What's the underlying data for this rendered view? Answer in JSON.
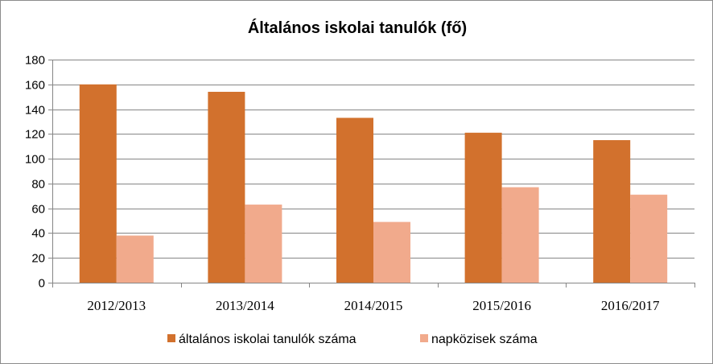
{
  "chart_data": {
    "type": "bar",
    "title": "Általános iskolai tanulók (fő)",
    "xlabel": "",
    "ylabel": "",
    "ylim": [
      0,
      180
    ],
    "yticks": [
      0,
      20,
      40,
      60,
      80,
      100,
      120,
      140,
      160,
      180
    ],
    "grid": true,
    "legend_position": "bottom",
    "categories": [
      "2012/2013",
      "2013/2014",
      "2014/2015",
      "2015/2016",
      "2016/2017"
    ],
    "series": [
      {
        "name": "általános iskolai tanulók száma",
        "color": "#d2712d",
        "values": [
          160,
          154,
          133,
          121,
          115
        ]
      },
      {
        "name": "napközisek száma",
        "color": "#f1aa8c",
        "values": [
          38,
          63,
          49,
          77,
          71
        ]
      }
    ]
  }
}
